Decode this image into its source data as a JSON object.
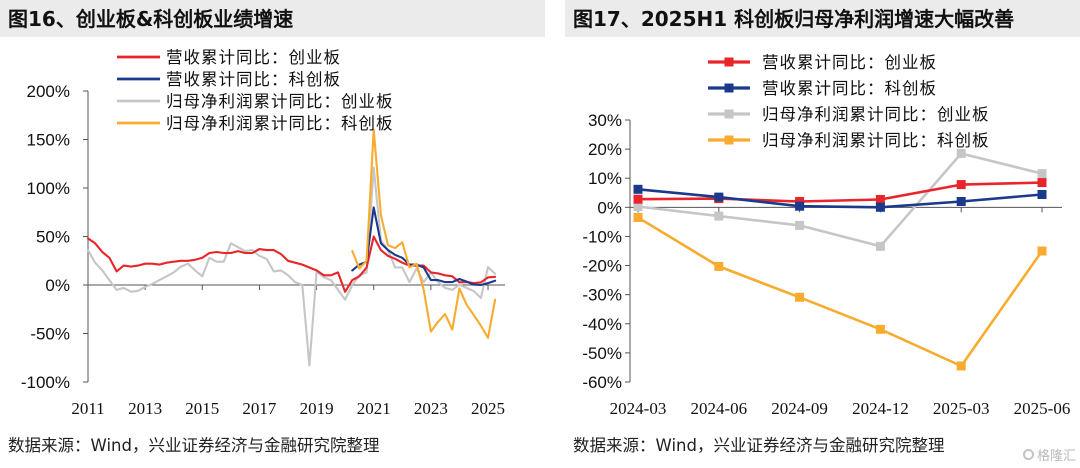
{
  "watermark": "格隆汇",
  "chart_data": [
    {
      "type": "line",
      "title": "图16、创业板&科创板业绩增速",
      "source": "数据来源：Wind，兴业证券经济与金融研究院整理",
      "x": [
        "2011-03",
        "2011-06",
        "2011-09",
        "2011-12",
        "2012-03",
        "2012-06",
        "2012-09",
        "2012-12",
        "2013-03",
        "2013-06",
        "2013-09",
        "2013-12",
        "2014-03",
        "2014-06",
        "2014-09",
        "2014-12",
        "2015-03",
        "2015-06",
        "2015-09",
        "2015-12",
        "2016-03",
        "2016-06",
        "2016-09",
        "2016-12",
        "2017-03",
        "2017-06",
        "2017-09",
        "2017-12",
        "2018-03",
        "2018-06",
        "2018-09",
        "2018-12",
        "2019-03",
        "2019-06",
        "2019-09",
        "2019-12",
        "2020-03",
        "2020-06",
        "2020-09",
        "2020-12",
        "2021-03",
        "2021-06",
        "2021-09",
        "2021-12",
        "2022-03",
        "2022-06",
        "2022-09",
        "2022-12",
        "2023-03",
        "2023-06",
        "2023-09",
        "2023-12",
        "2024-03",
        "2024-06",
        "2024-09",
        "2024-12",
        "2025-03",
        "2025-06"
      ],
      "x_tick_labels": [
        "2011",
        "2013",
        "2015",
        "2017",
        "2019",
        "2021",
        "2023",
        "2025"
      ],
      "y_tick_labels": [
        "200%",
        "150%",
        "100%",
        "50%",
        "0%",
        "-50%",
        "-100%"
      ],
      "ylim": [
        -100,
        200
      ],
      "grid": false,
      "legend_position": "top-left",
      "series": [
        {
          "name": "营收累计同比：创业板",
          "color": "#e8252b",
          "values": [
            48,
            43,
            34,
            28,
            14,
            20,
            19,
            20,
            22,
            22,
            21,
            23,
            24,
            25,
            25,
            26,
            28,
            33,
            34,
            33,
            33,
            35,
            33,
            33,
            37,
            36,
            36,
            32,
            25,
            23,
            21,
            18,
            15,
            10,
            10,
            13,
            -7,
            5,
            9,
            18,
            50,
            36,
            30,
            27,
            23,
            20,
            20,
            20,
            13,
            12,
            10,
            9,
            2.8,
            3.0,
            2.0,
            2.7,
            7.8,
            8.5
          ]
        },
        {
          "name": "营收累计同比：科创板",
          "color": "#1b3a8c",
          "values": [
            null,
            null,
            null,
            null,
            null,
            null,
            null,
            null,
            null,
            null,
            null,
            null,
            null,
            null,
            null,
            null,
            null,
            null,
            null,
            null,
            null,
            null,
            null,
            null,
            null,
            null,
            null,
            null,
            null,
            null,
            null,
            null,
            null,
            null,
            null,
            null,
            null,
            15,
            21,
            24,
            80,
            43,
            36,
            31,
            28,
            21,
            21,
            18,
            5,
            5,
            3,
            3,
            6.2,
            3.5,
            0.4,
            0.0,
            2.0,
            4.4
          ]
        },
        {
          "name": "归母净利润累计同比：创业板",
          "color": "#c6c6c6",
          "values": [
            36,
            23,
            15,
            5,
            -5,
            -3,
            -7,
            -6,
            -2,
            1,
            5,
            9,
            13,
            19,
            22,
            15,
            9,
            28,
            24,
            24,
            43,
            39,
            35,
            36,
            30,
            27,
            14,
            15,
            10,
            3,
            0,
            -83,
            14,
            8,
            5,
            -5,
            -15,
            0,
            10,
            13,
            121,
            46,
            36,
            18,
            18,
            3,
            17,
            3,
            13,
            3,
            -3,
            -5,
            0.3,
            -3.0,
            -6.2,
            -13.4,
            18.5,
            11.6
          ]
        },
        {
          "name": "归母净利润累计同比：科创板",
          "color": "#f9ab2f",
          "values": [
            null,
            null,
            null,
            null,
            null,
            null,
            null,
            null,
            null,
            null,
            null,
            null,
            null,
            null,
            null,
            null,
            null,
            null,
            null,
            null,
            null,
            null,
            null,
            null,
            null,
            null,
            null,
            null,
            null,
            null,
            null,
            null,
            null,
            null,
            null,
            null,
            null,
            35,
            17,
            25,
            160,
            72,
            41,
            38,
            44,
            18,
            22,
            -5,
            -48,
            -38,
            -30,
            -46,
            -3.5,
            -20.3,
            -30.9,
            -41.9,
            -54.5,
            -15.0
          ]
        }
      ]
    },
    {
      "type": "line",
      "title": "图17、2025H1 科创板归母净利润增速大幅改善",
      "source": "数据来源：Wind，兴业证券经济与金融研究院整理",
      "categories": [
        "2024-03",
        "2024-06",
        "2024-09",
        "2024-12",
        "2025-03",
        "2025-06"
      ],
      "y_tick_labels": [
        "30%",
        "20%",
        "10%",
        "0%",
        "-10%",
        "-20%",
        "-30%",
        "-40%",
        "-50%",
        "-60%"
      ],
      "ylim": [
        -60,
        30
      ],
      "grid": false,
      "marker": "square",
      "legend_position": "top",
      "series": [
        {
          "name": "营收累计同比：创业板",
          "color": "#e8252b",
          "values": [
            2.8,
            3.0,
            2.0,
            2.7,
            7.8,
            8.5
          ]
        },
        {
          "name": "营收累计同比：科创板",
          "color": "#1b3a8c",
          "values": [
            6.2,
            3.5,
            0.4,
            0.0,
            2.0,
            4.4
          ]
        },
        {
          "name": "归母净利润累计同比：创业板",
          "color": "#c6c6c6",
          "values": [
            0.3,
            -3.0,
            -6.2,
            -13.4,
            18.5,
            11.6
          ]
        },
        {
          "name": "归母净利润累计同比：科创板",
          "color": "#f9ab2f",
          "values": [
            -3.5,
            -20.3,
            -30.9,
            -41.9,
            -54.5,
            -15.0
          ]
        }
      ]
    }
  ]
}
